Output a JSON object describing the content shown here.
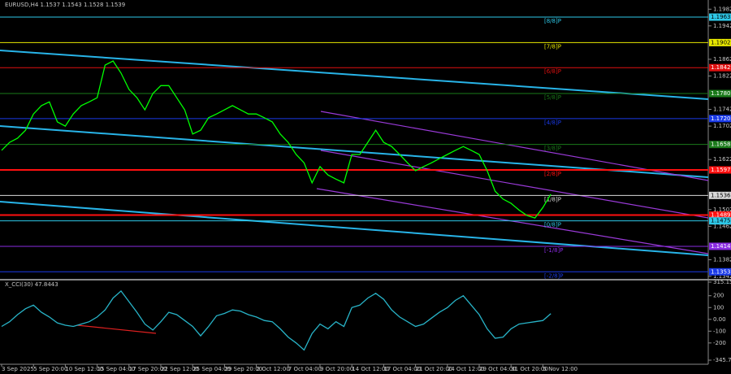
{
  "chart_data": [
    {
      "type": "line",
      "title": "EURUSD,H4  1.1537 1.1543 1.1528 1.1539",
      "color": "#00ff00",
      "categories": [
        "3 Sep 2025",
        null,
        null,
        null,
        "5 Sep 20:00",
        null,
        null,
        null,
        "10 Sep 12:00",
        null,
        null,
        null,
        "15 Sep 04:00",
        null,
        null,
        null,
        "17 Sep 20:00",
        null,
        null,
        null,
        "22 Sep 12:00",
        null,
        null,
        null,
        "25 Sep 04:00",
        null,
        null,
        null,
        "29 Sep 20:00",
        null,
        null,
        null,
        "2 Oct 12:00",
        null,
        null,
        null,
        "7 Oct 04:00",
        null,
        null,
        null,
        "9 Oct 20:00",
        null,
        null,
        null,
        "14 Oct 12:00",
        null,
        null,
        null,
        "17 Oct 04:00",
        null,
        null,
        null,
        "21 Oct 20:00",
        null,
        null,
        null,
        "24 Oct 12:00",
        null,
        null,
        null,
        "29 Oct 04:00",
        null,
        null,
        null,
        "31 Oct 20:00",
        null,
        null,
        null,
        "5 Nov 12:00",
        null
      ],
      "values": [
        1.1644,
        1.1663,
        1.1673,
        1.1692,
        1.1731,
        1.1751,
        1.176,
        1.1712,
        1.1702,
        1.1731,
        1.1751,
        1.176,
        1.177,
        1.1848,
        1.1858,
        1.1829,
        1.179,
        1.177,
        1.1741,
        1.178,
        1.1799,
        1.1799,
        1.177,
        1.1741,
        1.1683,
        1.1692,
        1.1722,
        1.1731,
        1.1741,
        1.1751,
        1.1741,
        1.1731,
        1.1731,
        1.1722,
        1.1712,
        1.1683,
        1.1663,
        1.1634,
        1.1614,
        1.1566,
        1.1605,
        1.1585,
        1.1575,
        1.1566,
        1.1634,
        1.1634,
        1.1663,
        1.1692,
        1.1663,
        1.1653,
        1.1634,
        1.1614,
        1.1595,
        1.1605,
        1.1614,
        1.1624,
        1.1634,
        1.1644,
        1.1653,
        1.1644,
        1.1634,
        1.1595,
        1.1546,
        1.1527,
        1.1517,
        1.1501,
        1.1488,
        1.1482,
        1.1507,
        1.1539
      ],
      "ylim": [
        1.1338,
        1.2004
      ],
      "yticks": [
        1.1982,
        1.1942,
        1.1862,
        1.1822,
        1.1742,
        1.1702,
        1.1622,
        1.1502,
        1.1462,
        1.1382,
        1.1342
      ],
      "levels": [
        {
          "value": 1.1963,
          "color": "#2ec8e8",
          "name": "[8/8]P"
        },
        {
          "value": 1.1902,
          "color": "#e8e800",
          "name": "[7/8]P"
        },
        {
          "value": 1.1842,
          "color": "#e01010",
          "name": "[6/8]P"
        },
        {
          "value": {
            "value": 1.178,
            "label": "1.1780"
          },
          "color": "#1a7a1a",
          "name": "[5/8]P"
        },
        {
          "value": {
            "value": 1.172,
            "label": "1.1720"
          },
          "color": "#1a3ae8",
          "name": "[4/8]P"
        },
        {
          "value": 1.1658,
          "color": "#1a7a1a",
          "name": "[3/8]P"
        },
        {
          "value": 1.1597,
          "color": "#ff1010",
          "name": "[2/8]P"
        },
        {
          "value": 1.1536,
          "color": "#d8d8d8",
          "name": "[1/8]P"
        },
        {
          "value": 1.1489,
          "color": "#ff1010"
        },
        {
          "value": 1.1475,
          "color": "#2ec8e8",
          "name": "[0/8]P"
        },
        {
          "value": 1.1414,
          "color": "#8a2be2",
          "name": "[-1/8]P"
        },
        {
          "value": 1.1353,
          "color": "#1a3ae8",
          "name": "[-2/8]P"
        }
      ]
    },
    {
      "type": "line",
      "title": "X_CCI(30) 47.8443",
      "color": "#28b4c8",
      "values": [
        -60,
        -20,
        40,
        90,
        120,
        60,
        20,
        -30,
        -50,
        -60,
        -40,
        -20,
        20,
        80,
        180,
        240,
        150,
        60,
        -40,
        -90,
        -20,
        60,
        40,
        -10,
        -60,
        -140,
        -60,
        30,
        50,
        80,
        70,
        40,
        20,
        -10,
        -20,
        -80,
        -150,
        -200,
        -260,
        -120,
        -40,
        -80,
        -20,
        -60,
        100,
        120,
        180,
        220,
        170,
        80,
        20,
        -20,
        -60,
        -40,
        10,
        60,
        100,
        160,
        200,
        120,
        40,
        -80,
        -160,
        -150,
        -80,
        -40,
        -30,
        -20,
        -10,
        47.8443
      ],
      "ylim": [
        -345.7254,
        315.1542
      ],
      "yticks": [
        315.1542,
        200,
        100,
        {
          "value": 0,
          "label": "0.00"
        },
        -100,
        -200,
        -345.7254
      ]
    }
  ]
}
